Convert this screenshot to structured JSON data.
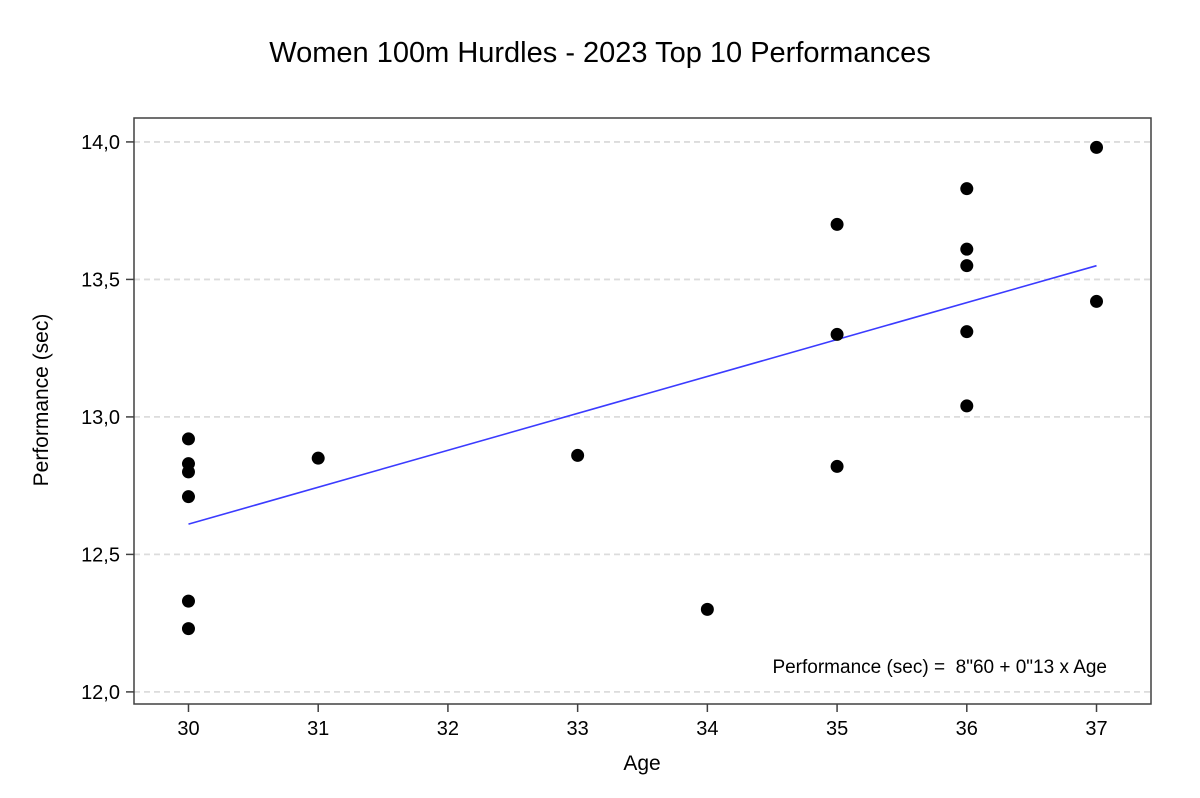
{
  "chart_data": {
    "type": "scatter",
    "title": "Women 100m Hurdles - 2023 Top 10 Performances",
    "xlabel": "Age",
    "ylabel": "Performance (sec)",
    "annotation": "Performance (sec) =  8\"60 + 0\"13 x Age",
    "x_ticks": [
      {
        "value": 30,
        "label": "30"
      },
      {
        "value": 31,
        "label": "31"
      },
      {
        "value": 32,
        "label": "32"
      },
      {
        "value": 33,
        "label": "33"
      },
      {
        "value": 34,
        "label": "34"
      },
      {
        "value": 35,
        "label": "35"
      },
      {
        "value": 36,
        "label": "36"
      },
      {
        "value": 37,
        "label": "37"
      }
    ],
    "y_ticks": [
      {
        "value": 12.0,
        "label": "12,0"
      },
      {
        "value": 12.5,
        "label": "12,5"
      },
      {
        "value": 13.0,
        "label": "13,0"
      },
      {
        "value": 13.5,
        "label": "13,5"
      },
      {
        "value": 14.0,
        "label": "14,0"
      }
    ],
    "xlim": [
      29.58,
      37.42
    ],
    "ylim": [
      11.956,
      14.087
    ],
    "grid": "horizontal-dashed",
    "legend": "none",
    "points": [
      {
        "age": 30,
        "perf": 12.92
      },
      {
        "age": 30,
        "perf": 12.83
      },
      {
        "age": 30,
        "perf": 12.8
      },
      {
        "age": 30,
        "perf": 12.71
      },
      {
        "age": 30,
        "perf": 12.33
      },
      {
        "age": 30,
        "perf": 12.23
      },
      {
        "age": 31,
        "perf": 12.85
      },
      {
        "age": 33,
        "perf": 12.86
      },
      {
        "age": 34,
        "perf": 12.3
      },
      {
        "age": 35,
        "perf": 13.7
      },
      {
        "age": 35,
        "perf": 13.3
      },
      {
        "age": 35,
        "perf": 12.82
      },
      {
        "age": 36,
        "perf": 13.83
      },
      {
        "age": 36,
        "perf": 13.61
      },
      {
        "age": 36,
        "perf": 13.55
      },
      {
        "age": 36,
        "perf": 13.31
      },
      {
        "age": 36,
        "perf": 13.04
      },
      {
        "age": 37,
        "perf": 13.98
      },
      {
        "age": 37,
        "perf": 13.42
      }
    ],
    "regression_line": {
      "x1": 30.0,
      "y1": 12.61,
      "x2": 37.0,
      "y2": 13.55
    },
    "colors": {
      "point": "#000000",
      "line": "#3b3bff",
      "grid": "#dcdcdc",
      "frame": "#404040",
      "text": "#000000",
      "background": "#ffffff"
    }
  }
}
